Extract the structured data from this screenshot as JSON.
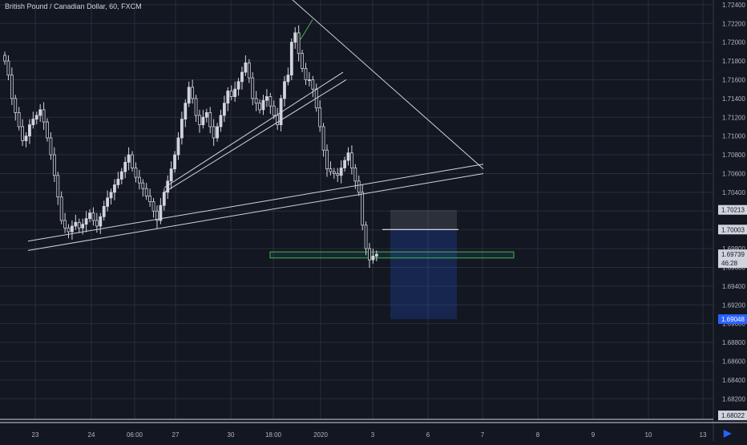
{
  "header": {
    "symbol_title": "British Pound / Canadian Dollar, 60, FXCM"
  },
  "colors": {
    "background": "#131722",
    "grid": "#2a2e39",
    "candle": "#d1d4dc",
    "axis_text": "#b2b5be",
    "trendline": "#d1d4dc",
    "green_zone": "#26a69a",
    "target_zone": "#2962ff",
    "stop_zone": "#787b86",
    "badge_bg": "#d1d4dc",
    "badge_blue": "#2962ff"
  },
  "chart_data": {
    "type": "candlestick",
    "title": "British Pound / Canadian Dollar, 60, FXCM",
    "ylim": [
      1.6798,
      1.7245
    ],
    "y_ticks": [
      "1.72400",
      "1.72200",
      "1.72000",
      "1.71800",
      "1.71600",
      "1.71400",
      "1.71200",
      "1.71000",
      "1.70800",
      "1.70600",
      "1.70400",
      "1.70200",
      "1.70000",
      "1.69800",
      "1.69600",
      "1.69400",
      "1.69200",
      "1.69000",
      "1.68800",
      "1.68600",
      "1.68400",
      "1.68200"
    ],
    "x_ticks": [
      "23",
      "24",
      "06:00",
      "27",
      "30",
      "18:00",
      "2020",
      "3",
      "6",
      "7",
      "8",
      "9",
      "10",
      "13"
    ],
    "price_badges": [
      {
        "label": "1.70213",
        "value": 1.70213,
        "style": "light"
      },
      {
        "label": "1.70003",
        "value": 1.70003,
        "style": "light"
      },
      {
        "label": "1.69739",
        "value": 1.69739,
        "style": "light"
      },
      {
        "label": "46:28",
        "value": 1.69645,
        "style": "light"
      },
      {
        "label": "1.69048",
        "value": 1.69048,
        "style": "blue"
      },
      {
        "label": "1.68022",
        "value": 1.68022,
        "style": "light"
      }
    ],
    "closes": [
      1.718,
      1.7165,
      1.714,
      1.7125,
      1.711,
      1.7095,
      1.71,
      1.7112,
      1.7118,
      1.7122,
      1.7128,
      1.7115,
      1.7098,
      1.708,
      1.7058,
      1.7035,
      1.701,
      1.7002,
      1.6998,
      1.7004,
      1.7008,
      1.7002,
      1.7006,
      1.7012,
      1.7018,
      1.701,
      1.7004,
      1.7014,
      1.7025,
      1.7034,
      1.704,
      1.7048,
      1.7054,
      1.7062,
      1.7072,
      1.708,
      1.7066,
      1.7056,
      1.705,
      1.7044,
      1.7036,
      1.703,
      1.702,
      1.701,
      1.7026,
      1.704,
      1.7052,
      1.7065,
      1.708,
      1.7098,
      1.7118,
      1.7135,
      1.7152,
      1.714,
      1.7122,
      1.7112,
      1.712,
      1.7125,
      1.711,
      1.7098,
      1.711,
      1.7122,
      1.7135,
      1.7148,
      1.7142,
      1.715,
      1.7158,
      1.7168,
      1.7178,
      1.7162,
      1.714,
      1.7135,
      1.7128,
      1.7138,
      1.7142,
      1.7132,
      1.7122,
      1.7112,
      1.714,
      1.7158,
      1.7165,
      1.72,
      1.721,
      1.7188,
      1.7172,
      1.716,
      1.716,
      1.715,
      1.713,
      1.711,
      1.7085,
      1.7065,
      1.7062,
      1.706,
      1.7058,
      1.7066,
      1.7074,
      1.7082,
      1.7066,
      1.7052,
      1.704,
      1.7005,
      1.698,
      1.6968,
      1.6972,
      1.6974
    ],
    "trendlines": [
      {
        "name": "upper-descending",
        "points": [
          [
            348,
            1.7258
          ],
          [
            603,
            1.7065
          ]
        ]
      },
      {
        "name": "lower-support-a",
        "points": [
          [
            35,
            1.6988
          ],
          [
            603,
            1.707
          ]
        ]
      },
      {
        "name": "lower-support-b",
        "points": [
          [
            35,
            1.6978
          ],
          [
            603,
            1.706
          ]
        ]
      },
      {
        "name": "channel-a",
        "points": [
          [
            205,
            1.7045
          ],
          [
            428,
            1.7168
          ]
        ]
      },
      {
        "name": "channel-b",
        "points": [
          [
            205,
            1.704
          ],
          [
            432,
            1.716
          ]
        ]
      },
      {
        "name": "green-swing",
        "points": [
          [
            375,
            1.7203
          ],
          [
            390,
            1.7224
          ]
        ]
      }
    ],
    "horizontal_zone": {
      "from": 1.69765,
      "to": 1.697
    },
    "position": {
      "entry": 1.70003,
      "target_top": 1.70213,
      "stop": 1.69048
    }
  }
}
